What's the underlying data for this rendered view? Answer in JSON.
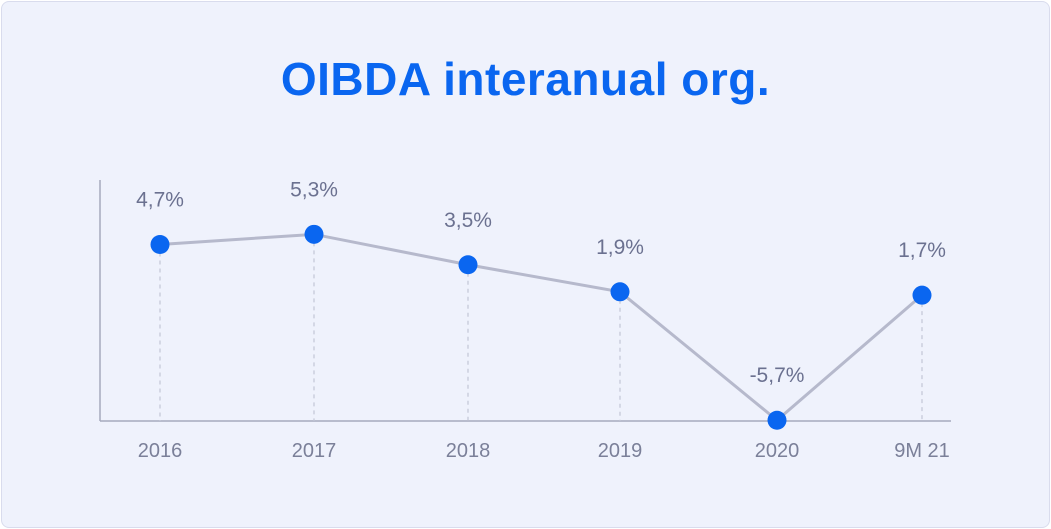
{
  "chart_data": {
    "type": "line",
    "title": "OIBDA interanual org.",
    "categories": [
      "2016",
      "2017",
      "2018",
      "2019",
      "2020",
      "9M 21"
    ],
    "series": [
      {
        "values": [
          4.7,
          5.3,
          3.5,
          1.9,
          -5.7,
          1.7
        ],
        "labels": [
          "4,7%",
          "5,3%",
          "3,5%",
          "1,9%",
          "-5,7%",
          "1,7%"
        ]
      }
    ],
    "xlabel": "",
    "ylabel": "",
    "grid": false,
    "colors": {
      "title": "#0a66f0",
      "marker": "#0a66f0",
      "line": "#b6b9cc",
      "axis": "#a5a9bd",
      "drop_line": "#c3c6d6",
      "text": "#6b7190",
      "background": "#eff2fc"
    }
  }
}
